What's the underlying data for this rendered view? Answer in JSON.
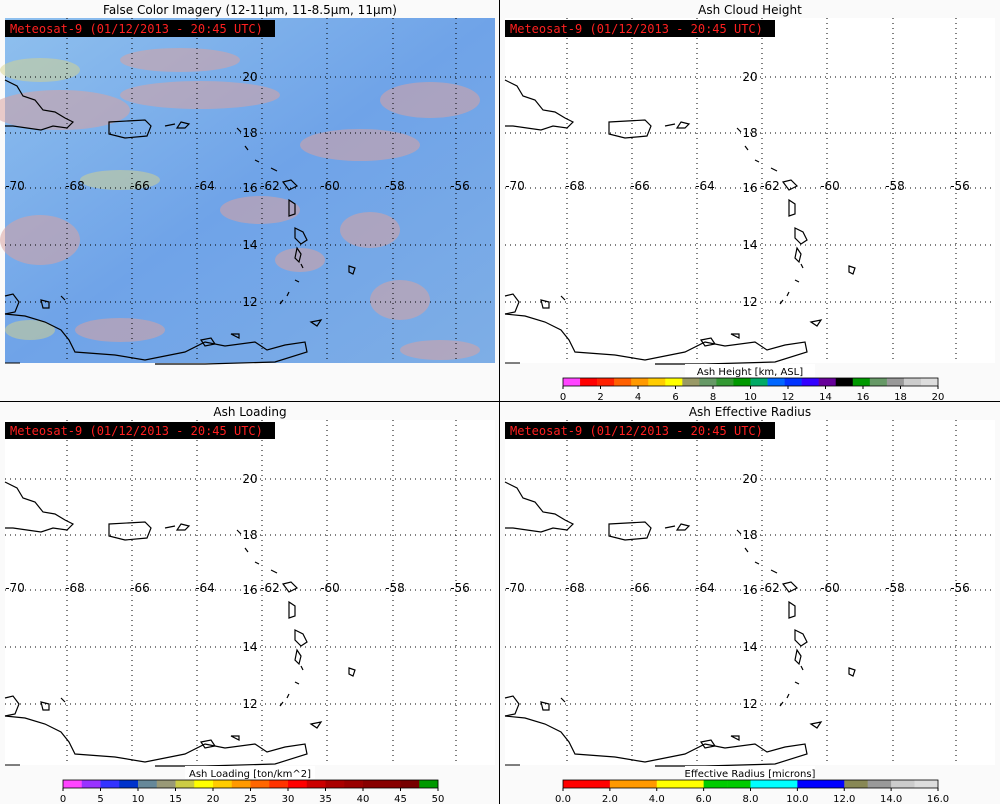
{
  "grid": {
    "lat_labels": [
      "20",
      "18",
      "16",
      "14",
      "12"
    ],
    "lon_labels": [
      "-70",
      "-68",
      "-66",
      "-64",
      "-62",
      "-60",
      "-58",
      "-56"
    ]
  },
  "panels": [
    {
      "title": "False Color Imagery (12-11μm, 11-8.5μm, 11μm)",
      "stamp": "Meteosat-9  (01/12/2013 - 20:45 UTC)",
      "imagery": true
    },
    {
      "title": "Ash Cloud Height",
      "stamp": "Meteosat-9  (01/12/2013 - 20:45 UTC)",
      "imagery": false,
      "colorbar": {
        "label": "Ash Height [km, ASL]",
        "ticks": [
          "0",
          "2",
          "4",
          "6",
          "8",
          "10",
          "12",
          "14",
          "16",
          "18",
          "20"
        ],
        "colors": [
          "#ff44ff",
          "#ff0000",
          "#ff2000",
          "#ff6000",
          "#ff9900",
          "#ffcc00",
          "#ffff00",
          "#999966",
          "#669966",
          "#339933",
          "#009900",
          "#00aa66",
          "#0066ff",
          "#0033ff",
          "#3300ff",
          "#660099",
          "#000000",
          "#009900",
          "#669966",
          "#999999",
          "#cccccc",
          "#dddddd"
        ]
      }
    },
    {
      "title": "Ash Loading",
      "stamp": "Meteosat-9  (01/12/2013 - 20:45 UTC)",
      "imagery": false,
      "colorbar": {
        "label": "Ash Loading [ton/km^2]",
        "ticks": [
          "0",
          "5",
          "10",
          "15",
          "20",
          "25",
          "30",
          "35",
          "40",
          "45",
          "50"
        ],
        "colors": [
          "#ff44ff",
          "#9933ff",
          "#3333ff",
          "#0033cc",
          "#668899",
          "#999977",
          "#cccc44",
          "#ffff00",
          "#ffcc00",
          "#ff9900",
          "#ff6600",
          "#ff3300",
          "#ff0000",
          "#cc0000",
          "#aa0000",
          "#990000",
          "#880000",
          "#880000",
          "#770000",
          "#009900"
        ]
      }
    },
    {
      "title": "Ash Effective Radius",
      "stamp": "Meteosat-9  (01/12/2013 - 20:45 UTC)",
      "imagery": false,
      "colorbar": {
        "label": "Effective Radius [microns]",
        "ticks": [
          "0.0",
          "2.0",
          "4.0",
          "6.0",
          "8.0",
          "10.0",
          "12.0",
          "14.0",
          "16.0"
        ],
        "colors": [
          "#ff0000",
          "#ff0000",
          "#ff9900",
          "#ff9900",
          "#ffff00",
          "#ffff00",
          "#00cc00",
          "#00cc00",
          "#00ffff",
          "#00ffff",
          "#0000ff",
          "#0000ff",
          "#888855",
          "#999999",
          "#cccccc",
          "#dddddd"
        ]
      }
    }
  ]
}
